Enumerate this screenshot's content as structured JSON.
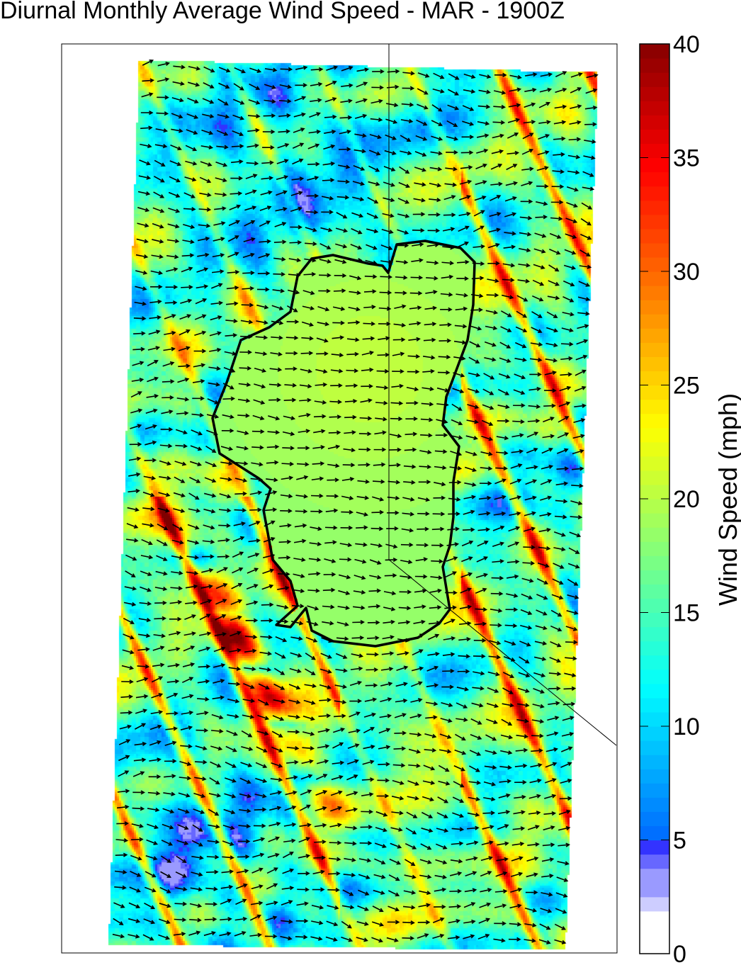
{
  "chart_data": {
    "type": "heatmap",
    "title": "Diurnal Monthly Average Wind Speed - MAR - 1900Z",
    "colorbar": {
      "label": "Wind Speed (mph)",
      "range": [
        0,
        40
      ],
      "ticks": [
        "0",
        "5",
        "10",
        "15",
        "20",
        "25",
        "30",
        "35",
        "40"
      ],
      "colormap": "jet (white below ~2 mph)"
    },
    "overlay": {
      "vectors": "wind direction arrows, mostly pointing east",
      "outline": "lake shoreline (black)",
      "boundary_lines": "thin black lines"
    },
    "field_description_values": {
      "lake_area_mph": 19,
      "north_and_southwest_low_mph": 9,
      "ridge_streaks_max_mph": 40
    }
  }
}
